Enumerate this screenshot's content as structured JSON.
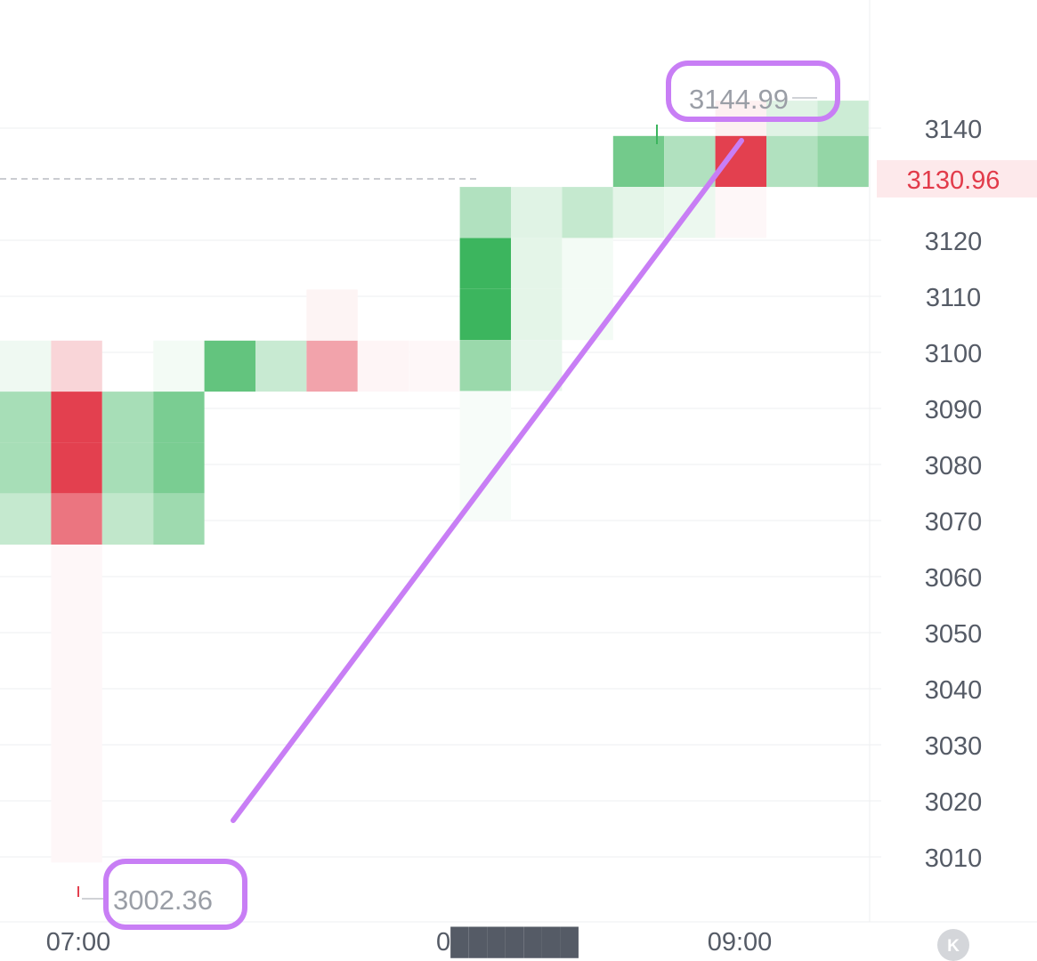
{
  "chart_data": {
    "type": "heatmap",
    "title": "",
    "xlabel": "",
    "ylabel": "",
    "x_ticks": [
      "07:00",
      "0███████",
      "09:00"
    ],
    "y_ticks": [
      3140,
      3120,
      3110,
      3100,
      3090,
      3080,
      3070,
      3060,
      3050,
      3040,
      3030,
      3020,
      3010
    ],
    "ylim": [
      2995,
      3152
    ],
    "current_price": 3130.96,
    "current_price_label": "3130.96",
    "high": {
      "value": 3144.99,
      "label": "3144.99"
    },
    "low": {
      "value": 3002.36,
      "label": "3002.36"
    },
    "price_bin_size": 9.1,
    "grid": true,
    "colors": {
      "up": "#3cb55e",
      "down": "#e3404f",
      "axis_text": "#555b66",
      "annotation": "#c87ef5",
      "current_price": "#e23b4a"
    },
    "columns": [
      {
        "cells": [
          {
            "price_from": 3093.0,
            "price_to": 3102.1,
            "side": "up",
            "intensity": 0.08
          },
          {
            "price_from": 3083.9,
            "price_to": 3093.0,
            "side": "up",
            "intensity": 0.45
          },
          {
            "price_from": 3074.8,
            "price_to": 3083.9,
            "side": "up",
            "intensity": 0.45
          },
          {
            "price_from": 3065.7,
            "price_to": 3074.8,
            "side": "up",
            "intensity": 0.3
          }
        ]
      },
      {
        "cells": [
          {
            "price_from": 3093.0,
            "price_to": 3102.1,
            "side": "down",
            "intensity": 0.22
          },
          {
            "price_from": 3083.9,
            "price_to": 3093.0,
            "side": "down",
            "intensity": 1.0
          },
          {
            "price_from": 3074.8,
            "price_to": 3083.9,
            "side": "down",
            "intensity": 1.0
          },
          {
            "price_from": 3065.7,
            "price_to": 3074.8,
            "side": "down",
            "intensity": 0.72
          },
          {
            "price_from": 3009.0,
            "price_to": 3065.7,
            "side": "down",
            "intensity": 0.04
          }
        ]
      },
      {
        "cells": [
          {
            "price_from": 3083.9,
            "price_to": 3093.0,
            "side": "up",
            "intensity": 0.45
          },
          {
            "price_from": 3074.8,
            "price_to": 3083.9,
            "side": "up",
            "intensity": 0.45
          },
          {
            "price_from": 3065.7,
            "price_to": 3074.8,
            "side": "up",
            "intensity": 0.32
          }
        ]
      },
      {
        "cells": [
          {
            "price_from": 3093.0,
            "price_to": 3102.1,
            "side": "up",
            "intensity": 0.06
          },
          {
            "price_from": 3083.9,
            "price_to": 3093.0,
            "side": "up",
            "intensity": 0.68
          },
          {
            "price_from": 3074.8,
            "price_to": 3083.9,
            "side": "up",
            "intensity": 0.68
          },
          {
            "price_from": 3065.7,
            "price_to": 3074.8,
            "side": "up",
            "intensity": 0.5
          }
        ]
      },
      {
        "cells": [
          {
            "price_from": 3093.0,
            "price_to": 3102.1,
            "side": "up",
            "intensity": 0.8
          }
        ]
      },
      {
        "cells": [
          {
            "price_from": 3093.0,
            "price_to": 3102.1,
            "side": "up",
            "intensity": 0.28
          }
        ]
      },
      {
        "cells": [
          {
            "price_from": 3093.0,
            "price_to": 3102.1,
            "side": "down",
            "intensity": 0.48
          },
          {
            "price_from": 3102.1,
            "price_to": 3111.2,
            "side": "down",
            "intensity": 0.06
          }
        ]
      },
      {
        "cells": [
          {
            "price_from": 3093.0,
            "price_to": 3102.1,
            "side": "down",
            "intensity": 0.05
          }
        ]
      },
      {
        "cells": [
          {
            "price_from": 3093.0,
            "price_to": 3102.1,
            "side": "down",
            "intensity": 0.04
          }
        ]
      },
      {
        "cells": [
          {
            "price_from": 3120.4,
            "price_to": 3129.5,
            "side": "up",
            "intensity": 0.4
          },
          {
            "price_from": 3111.3,
            "price_to": 3120.4,
            "side": "up",
            "intensity": 1.0
          },
          {
            "price_from": 3102.2,
            "price_to": 3111.3,
            "side": "up",
            "intensity": 1.0
          },
          {
            "price_from": 3093.1,
            "price_to": 3102.2,
            "side": "up",
            "intensity": 0.52
          },
          {
            "price_from": 3070.0,
            "price_to": 3093.1,
            "side": "up",
            "intensity": 0.04
          }
        ]
      },
      {
        "cells": [
          {
            "price_from": 3120.4,
            "price_to": 3129.5,
            "side": "up",
            "intensity": 0.16
          },
          {
            "price_from": 3111.3,
            "price_to": 3120.4,
            "side": "up",
            "intensity": 0.14
          },
          {
            "price_from": 3102.2,
            "price_to": 3111.3,
            "side": "up",
            "intensity": 0.14
          },
          {
            "price_from": 3093.1,
            "price_to": 3102.2,
            "side": "up",
            "intensity": 0.12
          }
        ]
      },
      {
        "cells": [
          {
            "price_from": 3120.4,
            "price_to": 3129.5,
            "side": "up",
            "intensity": 0.3
          },
          {
            "price_from": 3111.3,
            "price_to": 3120.4,
            "side": "up",
            "intensity": 0.06
          },
          {
            "price_from": 3102.2,
            "price_to": 3111.3,
            "side": "up",
            "intensity": 0.06
          }
        ]
      },
      {
        "cells": [
          {
            "price_from": 3129.5,
            "price_to": 3138.6,
            "side": "up",
            "intensity": 0.72
          },
          {
            "price_from": 3120.4,
            "price_to": 3129.5,
            "side": "up",
            "intensity": 0.14
          }
        ]
      },
      {
        "cells": [
          {
            "price_from": 3129.5,
            "price_to": 3138.6,
            "side": "up",
            "intensity": 0.4
          },
          {
            "price_from": 3120.4,
            "price_to": 3129.5,
            "side": "up",
            "intensity": 0.1
          }
        ]
      },
      {
        "cells": [
          {
            "price_from": 3138.6,
            "price_to": 3144.9,
            "side": "down",
            "intensity": 0.08
          },
          {
            "price_from": 3129.5,
            "price_to": 3138.6,
            "side": "down",
            "intensity": 1.0
          },
          {
            "price_from": 3120.4,
            "price_to": 3129.5,
            "side": "down",
            "intensity": 0.04
          }
        ]
      },
      {
        "cells": [
          {
            "price_from": 3138.6,
            "price_to": 3144.9,
            "side": "up",
            "intensity": 0.16
          },
          {
            "price_from": 3129.5,
            "price_to": 3138.6,
            "side": "up",
            "intensity": 0.4
          }
        ]
      },
      {
        "cells": [
          {
            "price_from": 3138.6,
            "price_to": 3144.9,
            "side": "up",
            "intensity": 0.26
          },
          {
            "price_from": 3129.5,
            "price_to": 3138.6,
            "side": "up",
            "intensity": 0.55
          }
        ]
      }
    ]
  },
  "reset_button": {
    "glyph": "K",
    "icon": "reset-zoom-icon"
  }
}
